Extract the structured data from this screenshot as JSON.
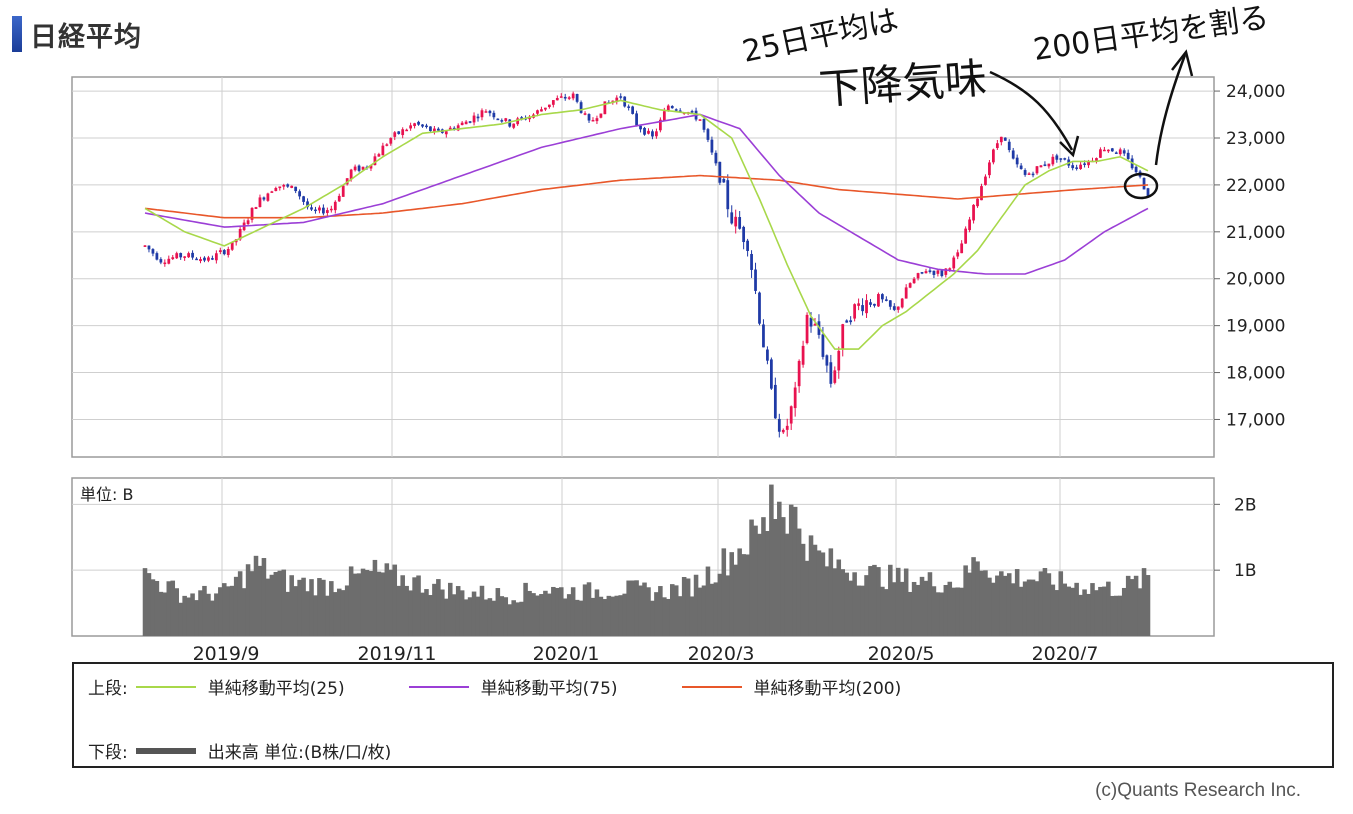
{
  "page": {
    "title": "日経平均",
    "copyright": "(c)Quants Research Inc."
  },
  "legend": {
    "upper_label": "上段:",
    "lower_label": "下段:",
    "ma25": "単純移動平均(25)",
    "ma75": "単純移動平均(75)",
    "ma200": "単純移動平均(200)",
    "volume": "出来高 単位:(B株/口/枚)"
  },
  "annotations": {
    "note1": "25日平均は",
    "note2": "下降気味",
    "note3": "200日平均を割る"
  },
  "colors": {
    "up": "#e8124f",
    "down": "#1f3aa6",
    "ma25": "#a8d84a",
    "ma75": "#9b3fd6",
    "ma200": "#e8572a",
    "volume": "#6d6d6d"
  },
  "chart_data": [
    {
      "type": "line",
      "title": "日経平均",
      "x_ticks": [
        "2019/9",
        "2019/11",
        "2020/1",
        "2020/3",
        "2020/5",
        "2020/7"
      ],
      "y_ticks": [
        "24,000",
        "23,000",
        "22,000",
        "21,000",
        "20,000",
        "19,000",
        "18,000",
        "17,000"
      ],
      "ylim": [
        16200,
        24300
      ],
      "price_anchors": [
        {
          "d": 0,
          "v": 20700
        },
        {
          "d": 4,
          "v": 20400
        },
        {
          "d": 10,
          "v": 20500
        },
        {
          "d": 16,
          "v": 20400
        },
        {
          "d": 22,
          "v": 20700
        },
        {
          "d": 28,
          "v": 21600
        },
        {
          "d": 33,
          "v": 22000
        },
        {
          "d": 38,
          "v": 21900
        },
        {
          "d": 42,
          "v": 21400
        },
        {
          "d": 47,
          "v": 21500
        },
        {
          "d": 52,
          "v": 22300
        },
        {
          "d": 56,
          "v": 22400
        },
        {
          "d": 62,
          "v": 23000
        },
        {
          "d": 68,
          "v": 23300
        },
        {
          "d": 74,
          "v": 23100
        },
        {
          "d": 80,
          "v": 23300
        },
        {
          "d": 86,
          "v": 23600
        },
        {
          "d": 92,
          "v": 23300
        },
        {
          "d": 98,
          "v": 23500
        },
        {
          "d": 103,
          "v": 23800
        },
        {
          "d": 108,
          "v": 23900
        },
        {
          "d": 112,
          "v": 23300
        },
        {
          "d": 116,
          "v": 23700
        },
        {
          "d": 120,
          "v": 23900
        },
        {
          "d": 124,
          "v": 23300
        },
        {
          "d": 128,
          "v": 23000
        },
        {
          "d": 132,
          "v": 23700
        },
        {
          "d": 136,
          "v": 23600
        },
        {
          "d": 140,
          "v": 23400
        },
        {
          "d": 144,
          "v": 22400
        },
        {
          "d": 148,
          "v": 21300
        },
        {
          "d": 152,
          "v": 20800
        },
        {
          "d": 155,
          "v": 19200
        },
        {
          "d": 158,
          "v": 17500
        },
        {
          "d": 161,
          "v": 16600
        },
        {
          "d": 164,
          "v": 17500
        },
        {
          "d": 167,
          "v": 19200
        },
        {
          "d": 170,
          "v": 18800
        },
        {
          "d": 173,
          "v": 17800
        },
        {
          "d": 177,
          "v": 19200
        },
        {
          "d": 181,
          "v": 19500
        },
        {
          "d": 185,
          "v": 19600
        },
        {
          "d": 189,
          "v": 19300
        },
        {
          "d": 193,
          "v": 19900
        },
        {
          "d": 197,
          "v": 20200
        },
        {
          "d": 201,
          "v": 20100
        },
        {
          "d": 205,
          "v": 20500
        },
        {
          "d": 209,
          "v": 21500
        },
        {
          "d": 213,
          "v": 22500
        },
        {
          "d": 216,
          "v": 23100
        },
        {
          "d": 219,
          "v": 22500
        },
        {
          "d": 222,
          "v": 22200
        },
        {
          "d": 226,
          "v": 22400
        },
        {
          "d": 230,
          "v": 22600
        },
        {
          "d": 234,
          "v": 22400
        },
        {
          "d": 238,
          "v": 22500
        },
        {
          "d": 242,
          "v": 22800
        },
        {
          "d": 246,
          "v": 22700
        },
        {
          "d": 250,
          "v": 22300
        },
        {
          "d": 253,
          "v": 21800
        }
      ],
      "ma25": [
        {
          "d": 0,
          "v": 21500
        },
        {
          "d": 10,
          "v": 21000
        },
        {
          "d": 20,
          "v": 20700
        },
        {
          "d": 30,
          "v": 21100
        },
        {
          "d": 40,
          "v": 21500
        },
        {
          "d": 50,
          "v": 22000
        },
        {
          "d": 60,
          "v": 22600
        },
        {
          "d": 70,
          "v": 23100
        },
        {
          "d": 80,
          "v": 23200
        },
        {
          "d": 90,
          "v": 23300
        },
        {
          "d": 100,
          "v": 23500
        },
        {
          "d": 110,
          "v": 23600
        },
        {
          "d": 120,
          "v": 23800
        },
        {
          "d": 130,
          "v": 23600
        },
        {
          "d": 140,
          "v": 23500
        },
        {
          "d": 148,
          "v": 23000
        },
        {
          "d": 155,
          "v": 21700
        },
        {
          "d": 162,
          "v": 20300
        },
        {
          "d": 168,
          "v": 19200
        },
        {
          "d": 174,
          "v": 18500
        },
        {
          "d": 180,
          "v": 18500
        },
        {
          "d": 186,
          "v": 19000
        },
        {
          "d": 192,
          "v": 19300
        },
        {
          "d": 198,
          "v": 19700
        },
        {
          "d": 204,
          "v": 20100
        },
        {
          "d": 210,
          "v": 20600
        },
        {
          "d": 216,
          "v": 21300
        },
        {
          "d": 222,
          "v": 22000
        },
        {
          "d": 228,
          "v": 22300
        },
        {
          "d": 234,
          "v": 22500
        },
        {
          "d": 240,
          "v": 22500
        },
        {
          "d": 246,
          "v": 22600
        },
        {
          "d": 253,
          "v": 22300
        }
      ],
      "ma75": [
        {
          "d": 0,
          "v": 21400
        },
        {
          "d": 20,
          "v": 21100
        },
        {
          "d": 40,
          "v": 21200
        },
        {
          "d": 60,
          "v": 21600
        },
        {
          "d": 80,
          "v": 22200
        },
        {
          "d": 100,
          "v": 22800
        },
        {
          "d": 120,
          "v": 23200
        },
        {
          "d": 140,
          "v": 23500
        },
        {
          "d": 150,
          "v": 23200
        },
        {
          "d": 160,
          "v": 22200
        },
        {
          "d": 170,
          "v": 21400
        },
        {
          "d": 180,
          "v": 20900
        },
        {
          "d": 190,
          "v": 20400
        },
        {
          "d": 200,
          "v": 20200
        },
        {
          "d": 212,
          "v": 20100
        },
        {
          "d": 222,
          "v": 20100
        },
        {
          "d": 232,
          "v": 20400
        },
        {
          "d": 242,
          "v": 21000
        },
        {
          "d": 253,
          "v": 21500
        }
      ],
      "ma200": [
        {
          "d": 0,
          "v": 21500
        },
        {
          "d": 20,
          "v": 21300
        },
        {
          "d": 40,
          "v": 21300
        },
        {
          "d": 60,
          "v": 21400
        },
        {
          "d": 80,
          "v": 21600
        },
        {
          "d": 100,
          "v": 21900
        },
        {
          "d": 120,
          "v": 22100
        },
        {
          "d": 140,
          "v": 22200
        },
        {
          "d": 160,
          "v": 22100
        },
        {
          "d": 175,
          "v": 21900
        },
        {
          "d": 190,
          "v": 21800
        },
        {
          "d": 205,
          "v": 21700
        },
        {
          "d": 220,
          "v": 21800
        },
        {
          "d": 235,
          "v": 21900
        },
        {
          "d": 253,
          "v": 22000
        }
      ]
    },
    {
      "type": "bar",
      "title": "単位: B",
      "y_ticks": [
        "2B",
        "1B"
      ],
      "ylim": [
        0,
        2.4
      ],
      "volume_anchors": [
        {
          "d": 0,
          "v": 0.9
        },
        {
          "d": 10,
          "v": 0.6
        },
        {
          "d": 20,
          "v": 0.65
        },
        {
          "d": 28,
          "v": 1.05
        },
        {
          "d": 36,
          "v": 0.8
        },
        {
          "d": 46,
          "v": 0.75
        },
        {
          "d": 58,
          "v": 0.95
        },
        {
          "d": 68,
          "v": 0.8
        },
        {
          "d": 80,
          "v": 0.65
        },
        {
          "d": 92,
          "v": 0.6
        },
        {
          "d": 100,
          "v": 0.7
        },
        {
          "d": 110,
          "v": 0.65
        },
        {
          "d": 120,
          "v": 0.7
        },
        {
          "d": 130,
          "v": 0.65
        },
        {
          "d": 138,
          "v": 0.75
        },
        {
          "d": 144,
          "v": 1.0
        },
        {
          "d": 150,
          "v": 1.3
        },
        {
          "d": 156,
          "v": 1.6
        },
        {
          "d": 160,
          "v": 2.0
        },
        {
          "d": 164,
          "v": 1.75
        },
        {
          "d": 168,
          "v": 1.3
        },
        {
          "d": 172,
          "v": 1.1
        },
        {
          "d": 180,
          "v": 0.95
        },
        {
          "d": 190,
          "v": 0.85
        },
        {
          "d": 200,
          "v": 0.8
        },
        {
          "d": 206,
          "v": 0.8
        },
        {
          "d": 210,
          "v": 1.15
        },
        {
          "d": 215,
          "v": 0.9
        },
        {
          "d": 225,
          "v": 0.85
        },
        {
          "d": 235,
          "v": 0.75
        },
        {
          "d": 245,
          "v": 0.7
        },
        {
          "d": 253,
          "v": 0.85
        }
      ],
      "volume_peak_day": 158,
      "volume_peak": 2.3
    }
  ]
}
